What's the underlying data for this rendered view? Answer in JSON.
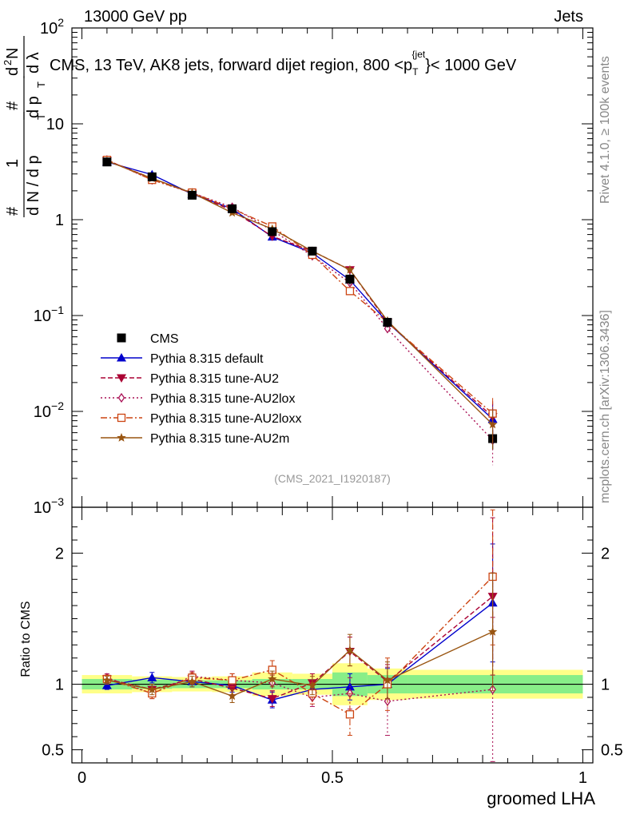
{
  "header": {
    "energy_label": "13000 GeV pp",
    "category_label": "Jets",
    "rivet_label": "Rivet 4.1.0, ≥ 100k events",
    "site_label": "mcplots.cern.ch [arXiv:1306.3436]",
    "analysis_label": "(CMS_2021_I1920187)"
  },
  "chart_data": [
    {
      "type": "line",
      "panel": "main",
      "title": "CMS, 13 TeV, AK8 jets, forward dijet region, 800 <p_T^{jet}< 1000 GeV",
      "title_parts": {
        "pre": "CMS, 13 TeV, AK8 jets, forward dijet region, 800 <p",
        "sub": "T",
        "sup": "{jet",
        "post": "}< 1000 GeV"
      },
      "ylabel_parts": {
        "hash": "#",
        "num": "1",
        "den": "d N / d p",
        "den_sub": "T",
        "frac2_top": "#",
        "frac2_bot": "d p",
        "frac2_sub": "T",
        "frac3_top": "d",
        "frac3_sup": "2",
        "frac3_top2": "N",
        "frac3_bot": "d λ"
      },
      "yscale": "log",
      "xlim": [
        -0.02,
        1.02
      ],
      "ylim": [
        0.001,
        100
      ],
      "y_ticks": [
        {
          "v": 100,
          "base": "10",
          "exp": "2"
        },
        {
          "v": 10,
          "base": "10",
          "exp": ""
        },
        {
          "v": 1,
          "base": "1",
          "exp": ""
        },
        {
          "v": 0.1,
          "base": "10",
          "exp": "−1"
        },
        {
          "v": 0.01,
          "base": "10",
          "exp": "−2"
        },
        {
          "v": 0.001,
          "base": "10",
          "exp": "−3"
        }
      ],
      "x": [
        0.05,
        0.14,
        0.22,
        0.3,
        0.38,
        0.46,
        0.535,
        0.61,
        0.82
      ],
      "data": {
        "name": "CMS",
        "values": [
          4.0,
          2.8,
          1.8,
          1.3,
          0.75,
          0.47,
          0.24,
          0.085,
          0.0052
        ],
        "errors": [
          0.15,
          0.1,
          0.07,
          0.06,
          0.04,
          0.03,
          0.03,
          0.01,
          0.0012
        ]
      },
      "series": [
        {
          "name": "Pythia 8.315 default",
          "color": "#0000cc",
          "dash": "",
          "marker": "triangle-up",
          "values": [
            4.0,
            2.95,
            1.85,
            1.3,
            0.66,
            0.45,
            0.235,
            0.085,
            0.0083
          ]
        },
        {
          "name": "Pythia 8.315 tune-AU2",
          "color": "#aa0033",
          "dash": "6,3",
          "marker": "triangle-down",
          "values": [
            4.15,
            2.7,
            1.88,
            1.25,
            0.67,
            0.47,
            0.3,
            0.085,
            0.0088
          ]
        },
        {
          "name": "Pythia 8.315 tune-AU2lox",
          "color": "#aa1155",
          "dash": "2,3",
          "marker": "diamond-open",
          "values": [
            4.2,
            2.6,
            1.9,
            1.35,
            0.77,
            0.42,
            0.22,
            0.073,
            0.005
          ]
        },
        {
          "name": "Pythia 8.315 tune-AU2loxx",
          "color": "#cc4411",
          "dash": "8,3,2,3",
          "marker": "square-open",
          "values": [
            4.2,
            2.6,
            1.92,
            1.3,
            0.85,
            0.43,
            0.18,
            0.085,
            0.0095
          ]
        },
        {
          "name": "Pythia 8.315 tune-AU2m",
          "color": "#995511",
          "dash": "",
          "marker": "star",
          "values": [
            4.1,
            2.7,
            1.9,
            1.18,
            0.8,
            0.47,
            0.3,
            0.088,
            0.0073
          ]
        }
      ]
    },
    {
      "type": "line",
      "panel": "ratio",
      "ylabel": "Ratio to CMS",
      "xlabel": "groomed LHA",
      "xlim": [
        -0.02,
        1.02
      ],
      "ylim": [
        0.4,
        2.35
      ],
      "y_ticks": [
        {
          "v": 0.5,
          "label": "0.5"
        },
        {
          "v": 1,
          "label": "1"
        },
        {
          "v": 2,
          "label": "2"
        }
      ],
      "x_ticks": [
        {
          "v": 0,
          "label": "0"
        },
        {
          "v": 0.5,
          "label": "0.5"
        },
        {
          "v": 1,
          "label": "1"
        }
      ],
      "bins": [
        [
          0.0,
          0.1
        ],
        [
          0.1,
          0.18
        ],
        [
          0.18,
          0.26
        ],
        [
          0.26,
          0.34
        ],
        [
          0.34,
          0.42
        ],
        [
          0.42,
          0.5
        ],
        [
          0.5,
          0.57
        ],
        [
          0.57,
          0.65
        ],
        [
          0.65,
          1.0
        ]
      ],
      "band_green": [
        0.04,
        0.035,
        0.03,
        0.03,
        0.04,
        0.04,
        0.09,
        0.07,
        0.07
      ],
      "band_yellow": [
        0.07,
        0.06,
        0.055,
        0.06,
        0.09,
        0.08,
        0.16,
        0.12,
        0.11
      ],
      "x": [
        0.05,
        0.14,
        0.22,
        0.3,
        0.38,
        0.46,
        0.535,
        0.61,
        0.82
      ],
      "series": [
        {
          "name": "Pythia 8.315 default",
          "color": "#0000cc",
          "dash": "",
          "marker": "triangle-up",
          "values": [
            0.99,
            1.05,
            1.02,
            0.99,
            0.88,
            0.96,
            0.98,
            1.0,
            1.62
          ],
          "errors": [
            0.03,
            0.04,
            0.04,
            0.05,
            0.06,
            0.07,
            0.1,
            0.12,
            0.45
          ]
        },
        {
          "name": "Pythia 8.315 tune-AU2",
          "color": "#aa0033",
          "dash": "6,3",
          "marker": "triangle-down",
          "values": [
            1.04,
            0.96,
            1.04,
            0.97,
            0.89,
            1.01,
            1.25,
            1.02,
            1.67
          ],
          "errors": [
            0.03,
            0.04,
            0.04,
            0.05,
            0.06,
            0.07,
            0.11,
            0.13,
            0.6
          ]
        },
        {
          "name": "Pythia 8.315 tune-AU2lox",
          "color": "#aa1155",
          "dash": "2,3",
          "marker": "diamond-open",
          "values": [
            1.05,
            0.93,
            1.06,
            1.03,
            1.01,
            0.9,
            0.93,
            0.87,
            0.96
          ],
          "errors": [
            0.03,
            0.04,
            0.04,
            0.05,
            0.06,
            0.07,
            0.12,
            0.26,
            0.55
          ]
        },
        {
          "name": "Pythia 8.315 tune-AU2loxx",
          "color": "#cc4411",
          "dash": "8,3,2,3",
          "marker": "square-open",
          "values": [
            1.04,
            0.93,
            1.05,
            1.03,
            1.11,
            0.93,
            0.77,
            1.0,
            1.82
          ],
          "errors": [
            0.03,
            0.04,
            0.04,
            0.05,
            0.07,
            0.08,
            0.16,
            0.2,
            0.52
          ]
        },
        {
          "name": "Pythia 8.315 tune-AU2m",
          "color": "#995511",
          "dash": "",
          "marker": "star",
          "values": [
            1.03,
            0.96,
            1.02,
            0.91,
            1.04,
            0.99,
            1.26,
            1.03,
            1.4
          ],
          "errors": [
            0.03,
            0.04,
            0.04,
            0.05,
            0.06,
            0.07,
            0.12,
            0.14,
            0.45
          ]
        }
      ]
    }
  ]
}
